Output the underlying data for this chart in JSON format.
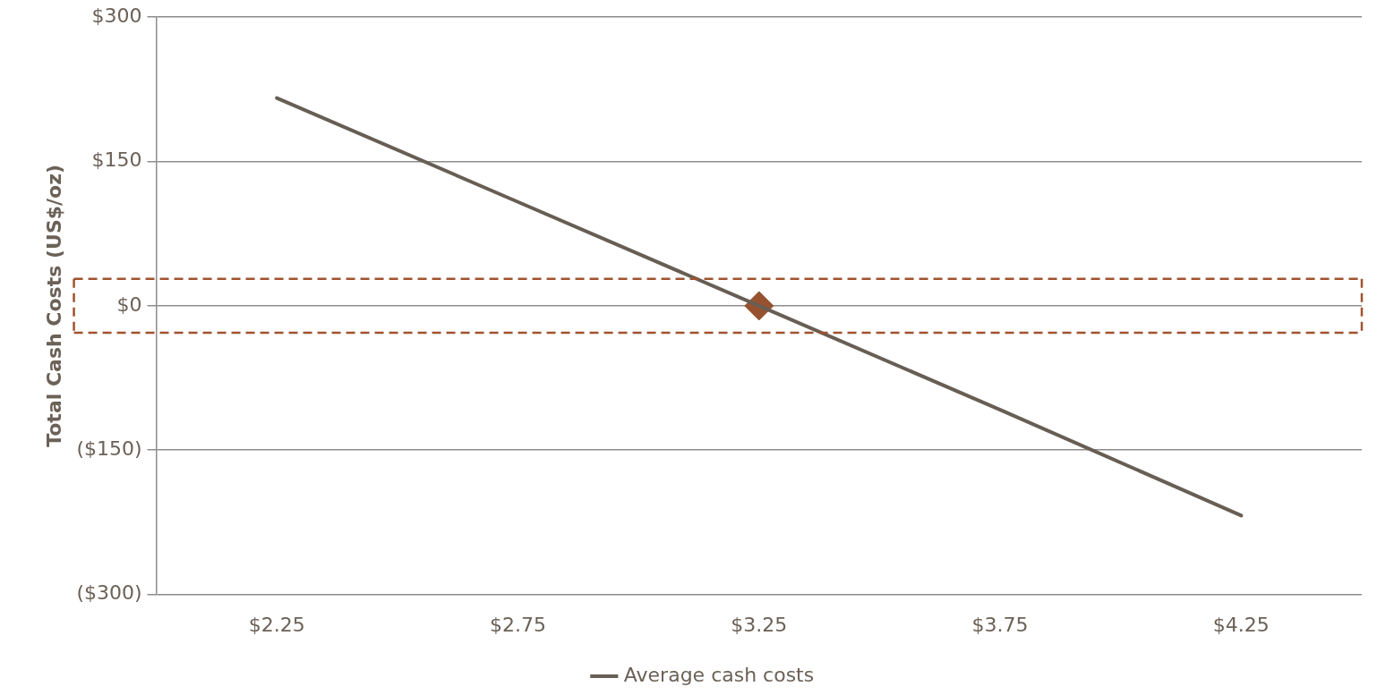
{
  "chart_data": {
    "type": "line",
    "ylabel": "Total Cash Costs (US$/oz)",
    "categories": [
      "$2.25",
      "$2.75",
      "$3.25",
      "$3.75",
      "$4.25"
    ],
    "series": [
      {
        "name": "Average cash costs",
        "color": "#675e54",
        "values": [
          216,
          108,
          0,
          -108,
          -218
        ]
      },
      {
        "type": "scatter",
        "color": "#96522f",
        "x": [
          "$3.25"
        ],
        "values": [
          0
        ],
        "marker": "diamond"
      }
    ],
    "ylim": [
      -300,
      300
    ],
    "yticks": [
      {
        "value": -300,
        "label": "($300)"
      },
      {
        "value": -150,
        "label": "($150)"
      },
      {
        "value": 0,
        "label": "$0"
      },
      {
        "value": 150,
        "label": "$150"
      },
      {
        "value": 300,
        "label": "$300"
      }
    ],
    "ref_lines": [
      {
        "axis": "y",
        "value": 28,
        "color": "#a0532f",
        "line_style": "dashed"
      },
      {
        "axis": "y",
        "value": -28,
        "color": "#a0532f",
        "line_style": "dashed"
      }
    ],
    "grid": "y",
    "legend": "bottom",
    "marker": "none",
    "line_style": "solid"
  }
}
